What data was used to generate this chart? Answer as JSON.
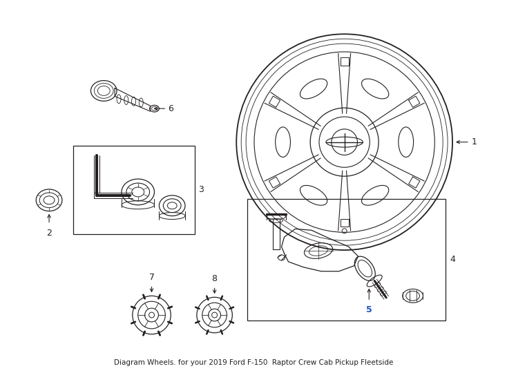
{
  "title": "Diagram Wheels. for your 2019 Ford F-150  Raptor Crew Cab Pickup Fleetside",
  "background_color": "#ffffff",
  "line_color": "#231f20",
  "fig_width": 7.34,
  "fig_height": 5.4,
  "dpi": 100,
  "title_fontsize": 7.5,
  "label_fontsize": 9
}
